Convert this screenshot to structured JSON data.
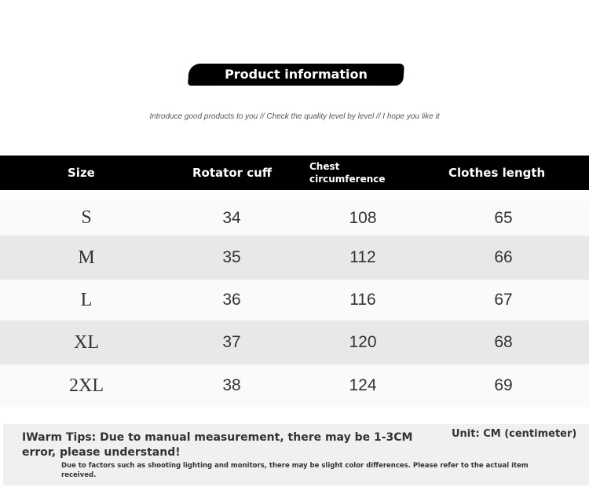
{
  "header": {
    "title": "Product information",
    "subtitle": "Introduce good products to you  //  Check the quality level by level  //  I hope you like it"
  },
  "table": {
    "columns": [
      "Size",
      "Rotator cuff",
      "Chest circumference",
      "Clothes length"
    ],
    "rows": [
      {
        "size": "S",
        "cuff": "34",
        "chest": "108",
        "length": "65"
      },
      {
        "size": "M",
        "cuff": "35",
        "chest": "112",
        "length": "66"
      },
      {
        "size": "L",
        "cuff": "36",
        "chest": "116",
        "length": "67"
      },
      {
        "size": "XL",
        "cuff": "37",
        "chest": "120",
        "length": "68"
      },
      {
        "size": "2XL",
        "cuff": "38",
        "chest": "124",
        "length": "69"
      }
    ],
    "colors": {
      "header_bg": "#000000",
      "row_light": "#fafafa",
      "row_dark": "#e8e8e8"
    }
  },
  "tips": {
    "main": "IWarm Tips: Due to manual measurement, there may be 1-3CM error, please understand!",
    "unit": "Unit: CM (centimeter)",
    "note": "Due to factors such as shooting lighting and monitors, there may be slight color differences. Please refer to the actual item received."
  }
}
